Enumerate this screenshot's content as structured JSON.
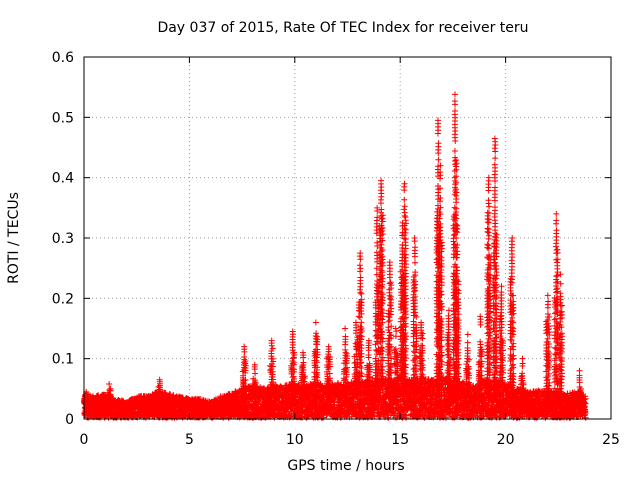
{
  "chart_data": {
    "type": "scatter",
    "title": "Day 037 of 2015, Rate Of TEC Index for receiver teru",
    "xlabel": "GPS time / hours",
    "ylabel": "ROTI / TECUs",
    "xlim": [
      0,
      25
    ],
    "ylim": [
      0,
      0.6
    ],
    "x_ticks": [
      "0",
      "5",
      "10",
      "15",
      "20",
      "25"
    ],
    "y_ticks": [
      "0",
      "0.1",
      "0.2",
      "0.3",
      "0.4",
      "0.5",
      "0.6"
    ],
    "grid": true,
    "marker": "+",
    "color": "#ff0000",
    "baseline": [
      {
        "x": 0.0,
        "y": 0.045
      },
      {
        "x": 0.5,
        "y": 0.04
      },
      {
        "x": 1.0,
        "y": 0.045
      },
      {
        "x": 1.5,
        "y": 0.035
      },
      {
        "x": 2.0,
        "y": 0.03
      },
      {
        "x": 2.5,
        "y": 0.04
      },
      {
        "x": 3.0,
        "y": 0.04
      },
      {
        "x": 3.5,
        "y": 0.05
      },
      {
        "x": 4.0,
        "y": 0.045
      },
      {
        "x": 4.5,
        "y": 0.04
      },
      {
        "x": 5.0,
        "y": 0.035
      },
      {
        "x": 5.5,
        "y": 0.035
      },
      {
        "x": 6.0,
        "y": 0.03
      },
      {
        "x": 6.5,
        "y": 0.04
      },
      {
        "x": 7.0,
        "y": 0.045
      },
      {
        "x": 7.5,
        "y": 0.055
      },
      {
        "x": 8.0,
        "y": 0.06
      },
      {
        "x": 8.5,
        "y": 0.055
      },
      {
        "x": 9.0,
        "y": 0.06
      },
      {
        "x": 9.5,
        "y": 0.06
      },
      {
        "x": 10.0,
        "y": 0.065
      },
      {
        "x": 10.5,
        "y": 0.06
      },
      {
        "x": 11.0,
        "y": 0.065
      },
      {
        "x": 11.5,
        "y": 0.06
      },
      {
        "x": 12.0,
        "y": 0.065
      },
      {
        "x": 12.5,
        "y": 0.065
      },
      {
        "x": 13.0,
        "y": 0.07
      },
      {
        "x": 13.5,
        "y": 0.07
      },
      {
        "x": 14.0,
        "y": 0.075
      },
      {
        "x": 14.5,
        "y": 0.07
      },
      {
        "x": 15.0,
        "y": 0.075
      },
      {
        "x": 15.5,
        "y": 0.07
      },
      {
        "x": 16.0,
        "y": 0.075
      },
      {
        "x": 16.5,
        "y": 0.07
      },
      {
        "x": 17.0,
        "y": 0.075
      },
      {
        "x": 17.5,
        "y": 0.07
      },
      {
        "x": 18.0,
        "y": 0.065
      },
      {
        "x": 18.5,
        "y": 0.06
      },
      {
        "x": 19.0,
        "y": 0.07
      },
      {
        "x": 19.5,
        "y": 0.07
      },
      {
        "x": 20.0,
        "y": 0.065
      },
      {
        "x": 20.5,
        "y": 0.055
      },
      {
        "x": 21.0,
        "y": 0.05
      },
      {
        "x": 21.5,
        "y": 0.05
      },
      {
        "x": 22.0,
        "y": 0.05
      },
      {
        "x": 22.5,
        "y": 0.05
      },
      {
        "x": 23.0,
        "y": 0.045
      },
      {
        "x": 23.5,
        "y": 0.05
      },
      {
        "x": 23.8,
        "y": 0.04
      }
    ],
    "peaks": [
      {
        "x": 0.1,
        "y": 0.045
      },
      {
        "x": 1.2,
        "y": 0.058
      },
      {
        "x": 3.6,
        "y": 0.065
      },
      {
        "x": 7.6,
        "y": 0.12
      },
      {
        "x": 8.1,
        "y": 0.09
      },
      {
        "x": 8.9,
        "y": 0.13
      },
      {
        "x": 9.9,
        "y": 0.145
      },
      {
        "x": 10.4,
        "y": 0.11
      },
      {
        "x": 11.0,
        "y": 0.16
      },
      {
        "x": 11.6,
        "y": 0.12
      },
      {
        "x": 12.4,
        "y": 0.15
      },
      {
        "x": 12.9,
        "y": 0.16
      },
      {
        "x": 13.1,
        "y": 0.275
      },
      {
        "x": 13.5,
        "y": 0.13
      },
      {
        "x": 13.9,
        "y": 0.35
      },
      {
        "x": 14.1,
        "y": 0.395
      },
      {
        "x": 14.5,
        "y": 0.26
      },
      {
        "x": 14.8,
        "y": 0.15
      },
      {
        "x": 15.1,
        "y": 0.325
      },
      {
        "x": 15.2,
        "y": 0.39
      },
      {
        "x": 15.7,
        "y": 0.3
      },
      {
        "x": 16.0,
        "y": 0.16
      },
      {
        "x": 16.8,
        "y": 0.495
      },
      {
        "x": 16.9,
        "y": 0.42
      },
      {
        "x": 17.3,
        "y": 0.18
      },
      {
        "x": 17.6,
        "y": 0.538
      },
      {
        "x": 17.7,
        "y": 0.32
      },
      {
        "x": 18.2,
        "y": 0.14
      },
      {
        "x": 18.8,
        "y": 0.17
      },
      {
        "x": 19.2,
        "y": 0.4
      },
      {
        "x": 19.5,
        "y": 0.465
      },
      {
        "x": 19.8,
        "y": 0.22
      },
      {
        "x": 20.3,
        "y": 0.3
      },
      {
        "x": 20.8,
        "y": 0.1
      },
      {
        "x": 22.0,
        "y": 0.205
      },
      {
        "x": 22.4,
        "y": 0.34
      },
      {
        "x": 22.6,
        "y": 0.24
      },
      {
        "x": 23.5,
        "y": 0.08
      }
    ]
  }
}
